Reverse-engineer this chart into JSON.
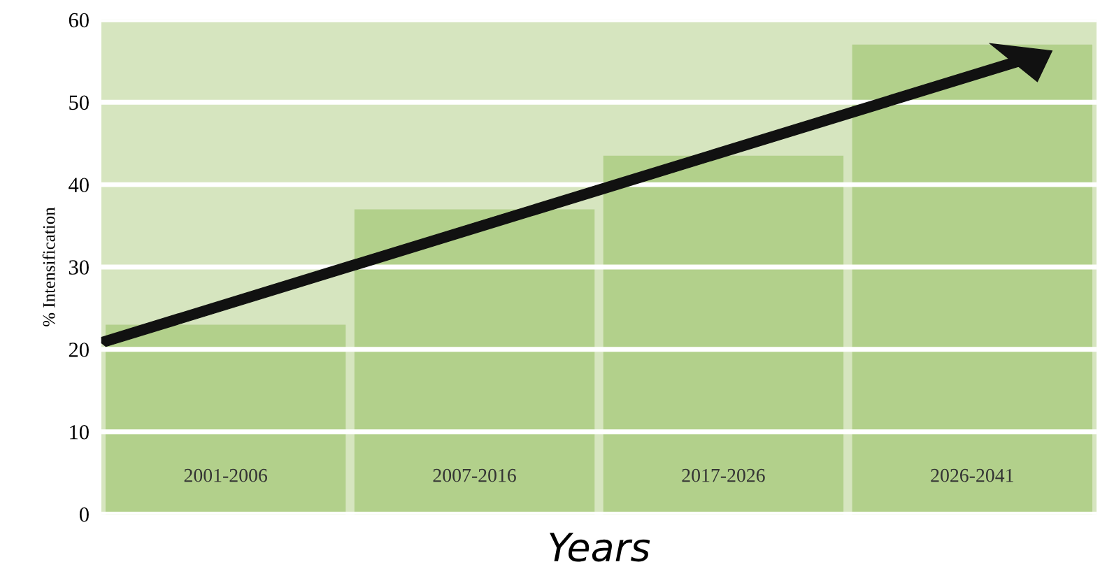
{
  "chart_data": {
    "type": "bar",
    "categories": [
      "2001-2006",
      "2007-2016",
      "2017-2026",
      "2026-2041"
    ],
    "values": [
      23,
      37,
      43.5,
      57
    ],
    "color": "#b2d08b",
    "xlabel": "Years",
    "ylabel": "% Intensification",
    "bands": [
      {
        "axis": "y",
        "from": 0,
        "to": 60,
        "color": "#d6e5bf"
      }
    ],
    "ylim": [
      0,
      60
    ],
    "yticks": [
      0,
      10,
      20,
      30,
      40,
      50,
      60
    ],
    "grid": "y"
  }
}
